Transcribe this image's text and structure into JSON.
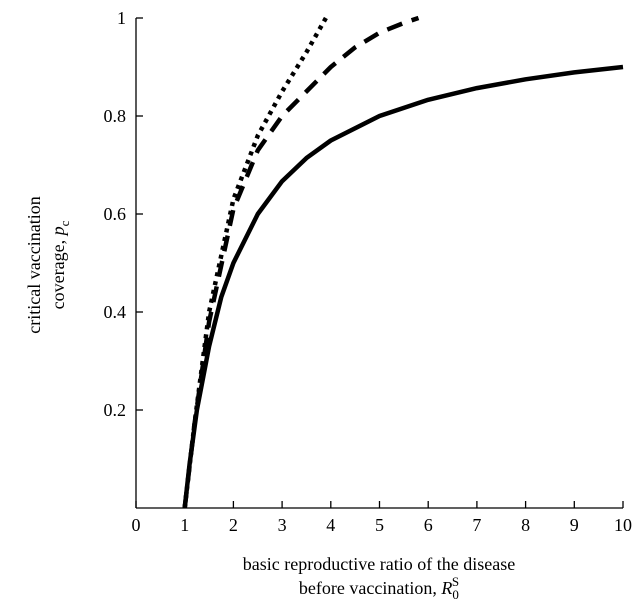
{
  "chart_data": {
    "type": "line",
    "title": "",
    "xlabel_line1": "basic reproductive ratio of the disease",
    "xlabel_line2_prefix": "before vaccination, ",
    "xlabel_symbol": "R",
    "xlabel_symbol_sub": "0",
    "xlabel_symbol_sup": "S",
    "ylabel_line1": "critical vaccination",
    "ylabel_line2_prefix": "coverage, ",
    "ylabel_symbol": "p",
    "ylabel_symbol_sub": "c",
    "xlim": [
      0,
      10
    ],
    "ylim": [
      0,
      1
    ],
    "xticks": [
      0,
      1,
      2,
      3,
      4,
      5,
      6,
      7,
      8,
      9,
      10
    ],
    "yticks": [
      0.2,
      0.4,
      0.6,
      0.8,
      1
    ],
    "ytick_labels": [
      "0.2",
      "0.4",
      "0.6",
      "0.8",
      "1"
    ],
    "grid": false,
    "series": [
      {
        "style": "solid",
        "x": [
          1.0,
          1.1,
          1.25,
          1.5,
          1.75,
          2.0,
          2.5,
          3.0,
          3.5,
          4.0,
          5.0,
          6.0,
          7.0,
          8.0,
          9.0,
          10.0
        ],
        "y": [
          0.0,
          0.09,
          0.2,
          0.33,
          0.43,
          0.5,
          0.6,
          0.667,
          0.714,
          0.75,
          0.8,
          0.833,
          0.857,
          0.875,
          0.889,
          0.9
        ]
      },
      {
        "style": "dashed",
        "x": [
          1.0,
          1.2,
          1.5,
          2.0,
          2.5,
          3.0,
          3.5,
          4.0,
          4.5,
          5.0,
          5.5,
          5.8
        ],
        "y": [
          0.0,
          0.17,
          0.38,
          0.61,
          0.73,
          0.8,
          0.85,
          0.9,
          0.94,
          0.97,
          0.99,
          1.0
        ]
      },
      {
        "style": "dotted",
        "x": [
          1.0,
          1.2,
          1.5,
          2.0,
          2.5,
          3.0,
          3.5,
          3.9
        ],
        "y": [
          0.0,
          0.17,
          0.4,
          0.63,
          0.76,
          0.85,
          0.93,
          1.0
        ]
      }
    ]
  }
}
